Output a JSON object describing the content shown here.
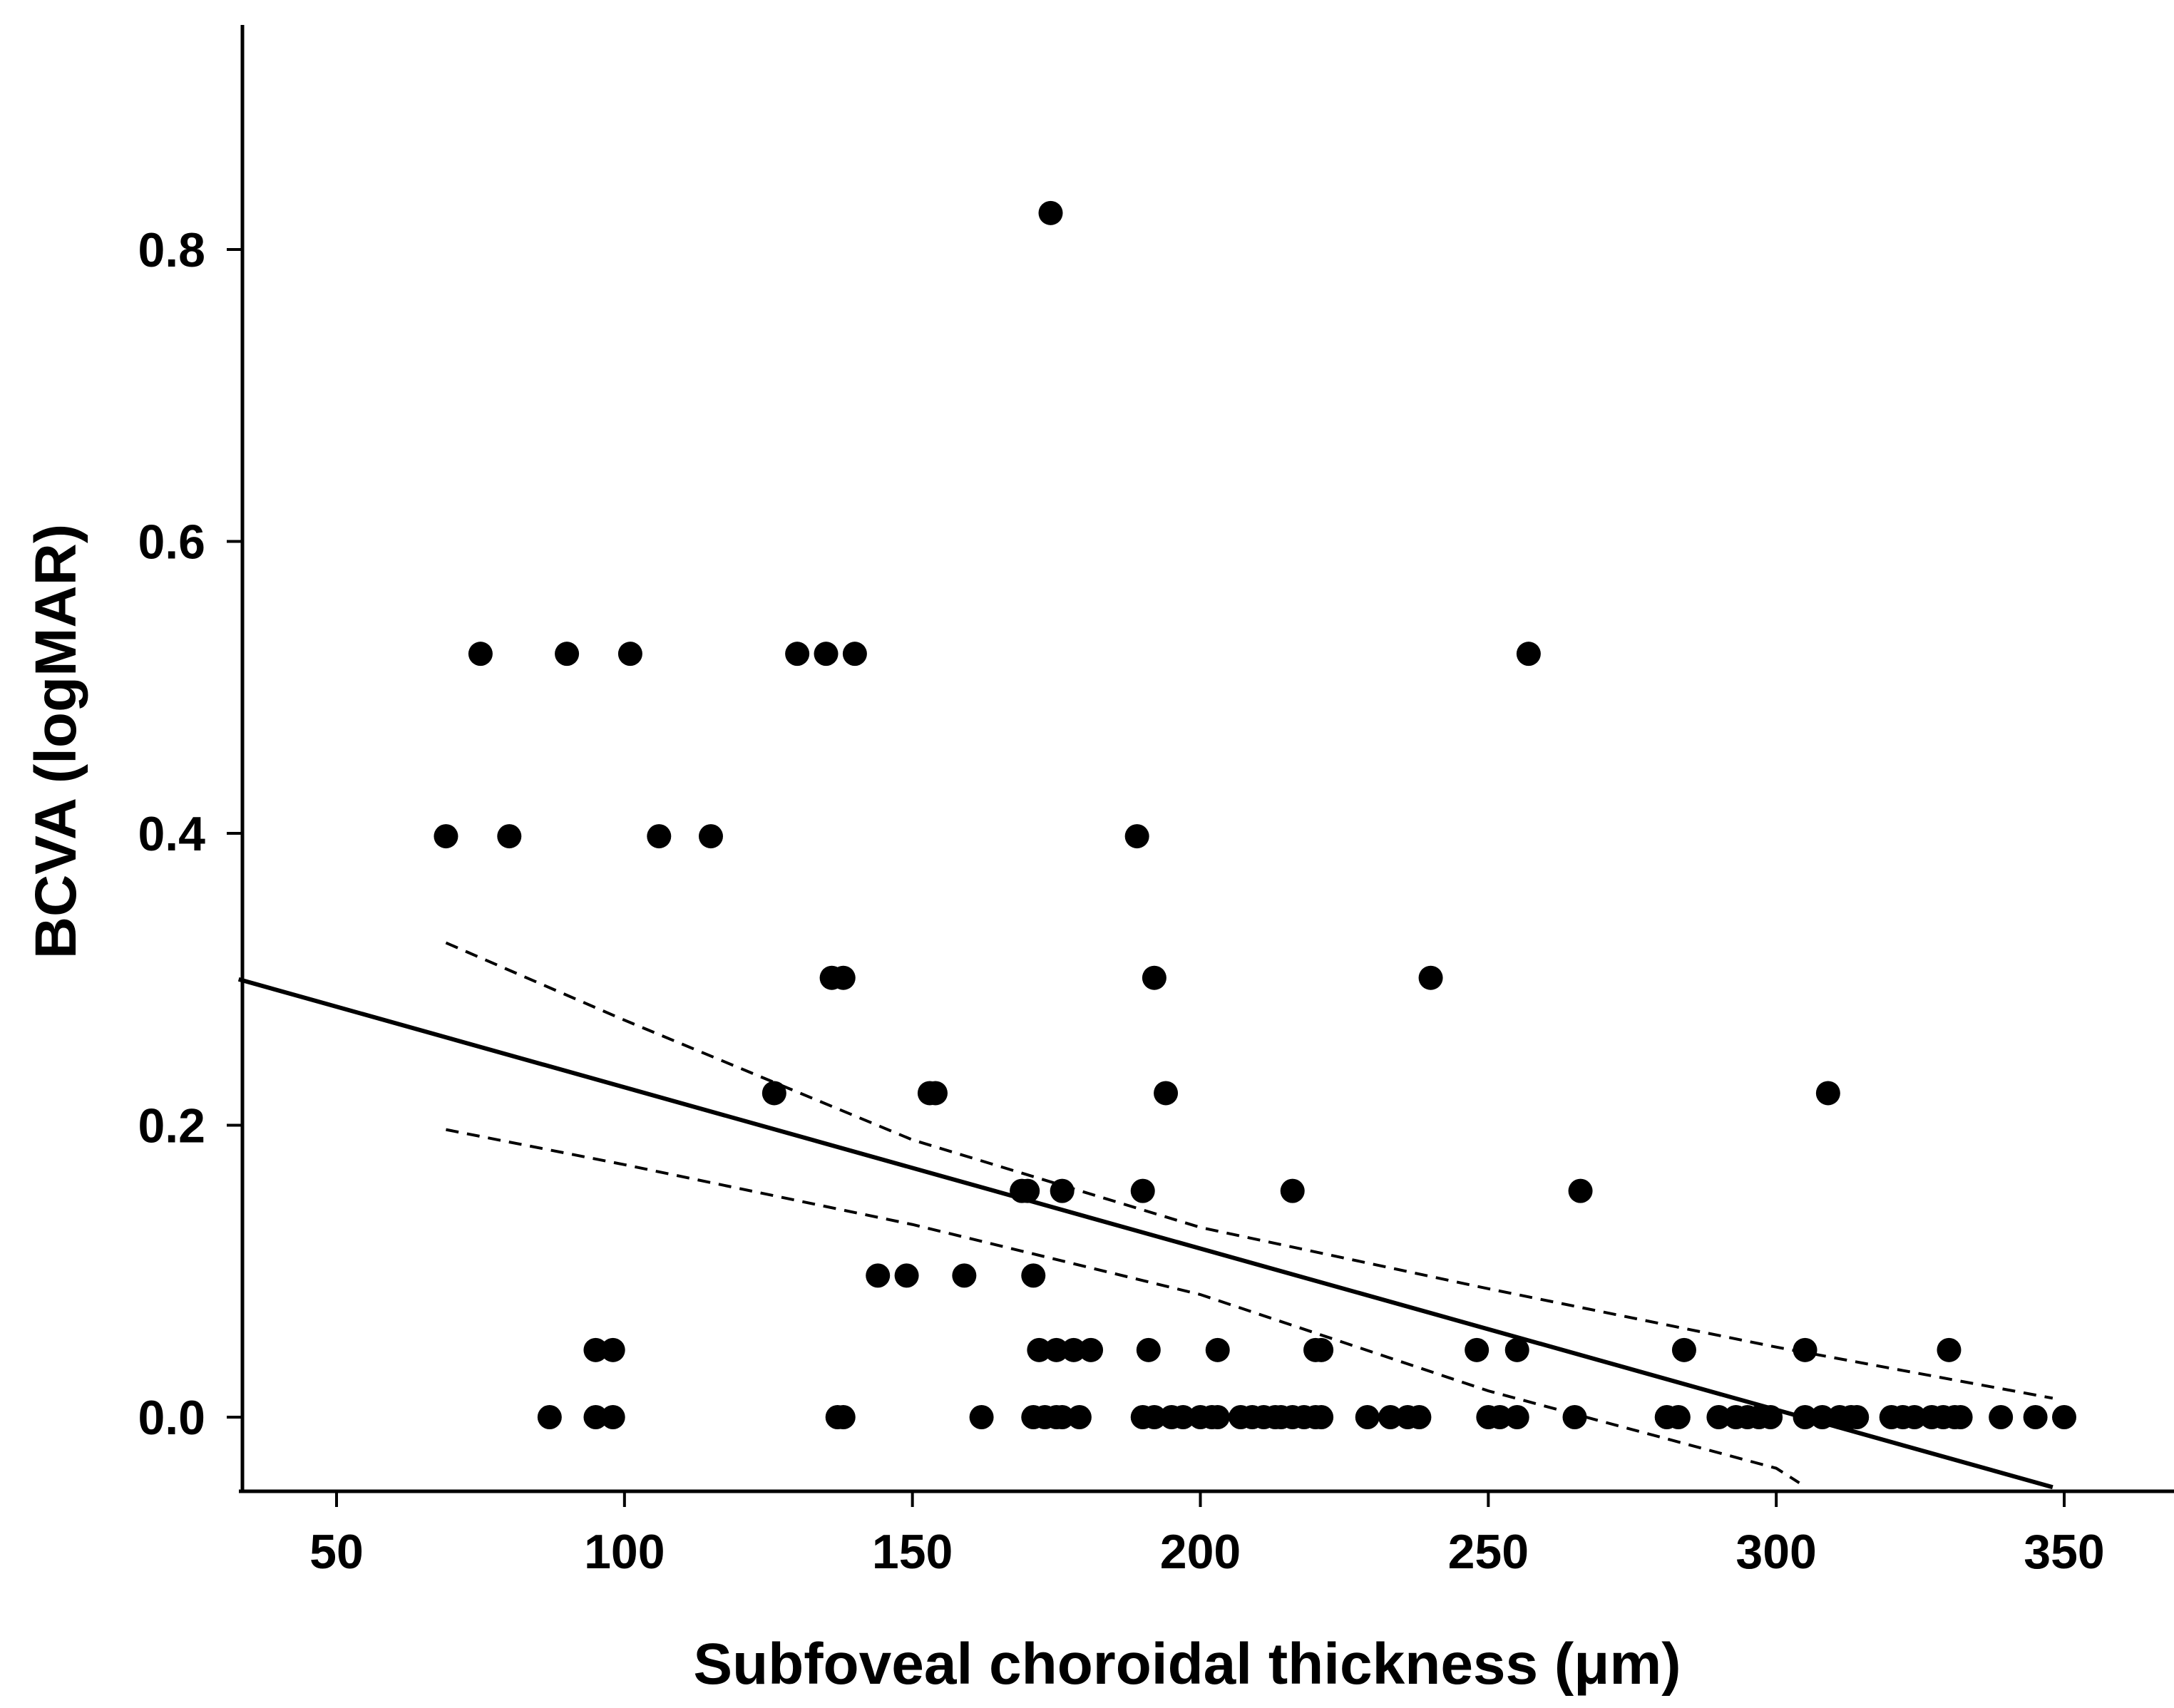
{
  "chart_data": {
    "type": "scatter",
    "title": "",
    "xlabel": "Subfoveal choroidal thickness (μm)",
    "ylabel": "BCVA (logMAR)",
    "xlim": [
      33,
      362
    ],
    "ylim": [
      -0.05,
      0.95
    ],
    "xticks": [
      50,
      100,
      150,
      200,
      250,
      300,
      350
    ],
    "xtick_labels": [
      "50",
      "100",
      "150",
      "200",
      "250",
      "300",
      "350"
    ],
    "yticks": [
      0.0,
      0.2,
      0.4,
      0.6,
      0.8
    ],
    "ytick_labels": [
      "0.0",
      "0.2",
      "0.4",
      "0.6",
      "0.8"
    ],
    "grid": false,
    "legend": "none",
    "regression_line": {
      "x": [
        33,
        348
      ],
      "y": [
        0.3,
        -0.048
      ],
      "style": "solid"
    },
    "confidence_band": {
      "upper": {
        "x": [
          69,
          100,
          150,
          200,
          250,
          300,
          348
        ],
        "y": [
          0.325,
          0.272,
          0.19,
          0.13,
          0.088,
          0.048,
          0.013
        ]
      },
      "lower": {
        "x": [
          69,
          100,
          150,
          200,
          250,
          300,
          304
        ],
        "y": [
          0.197,
          0.173,
          0.132,
          0.084,
          0.018,
          -0.035,
          -0.045
        ]
      },
      "style": "dashed"
    },
    "points": {
      "x": [
        174,
        75,
        90,
        101,
        130,
        135,
        140,
        257,
        69,
        80,
        106,
        115,
        189,
        136,
        138,
        192,
        240,
        126,
        153,
        154,
        194,
        309,
        169,
        170,
        176,
        190,
        216,
        266,
        144,
        149,
        159,
        171,
        95,
        98,
        172,
        175,
        178,
        181,
        191,
        203,
        220,
        221,
        248,
        255,
        284,
        305,
        330,
        87,
        95,
        98,
        137,
        138,
        162,
        171,
        173,
        175,
        176,
        179,
        190,
        192,
        195,
        197,
        200,
        202,
        203,
        207,
        209,
        211,
        213,
        214,
        216,
        218,
        220,
        221,
        229,
        233,
        236,
        238,
        250,
        252,
        255,
        265,
        281,
        283,
        290,
        293,
        295,
        297,
        299,
        305,
        308,
        311,
        313,
        314,
        320,
        322,
        324,
        327,
        329,
        331,
        332,
        339,
        345,
        350
      ],
      "y": [
        0.825,
        0.523,
        0.523,
        0.523,
        0.523,
        0.523,
        0.523,
        0.523,
        0.398,
        0.398,
        0.398,
        0.398,
        0.398,
        0.301,
        0.301,
        0.301,
        0.301,
        0.222,
        0.222,
        0.222,
        0.222,
        0.222,
        0.155,
        0.155,
        0.155,
        0.155,
        0.155,
        0.155,
        0.097,
        0.097,
        0.097,
        0.097,
        0.046,
        0.046,
        0.046,
        0.046,
        0.046,
        0.046,
        0.046,
        0.046,
        0.046,
        0.046,
        0.046,
        0.046,
        0.046,
        0.046,
        0.046,
        0.0,
        0.0,
        0.0,
        0.0,
        0.0,
        0.0,
        0.0,
        0.0,
        0.0,
        0.0,
        0.0,
        0.0,
        0.0,
        0.0,
        0.0,
        0.0,
        0.0,
        0.0,
        0.0,
        0.0,
        0.0,
        0.0,
        0.0,
        0.0,
        0.0,
        0.0,
        0.0,
        0.0,
        0.0,
        0.0,
        0.0,
        0.0,
        0.0,
        0.0,
        0.0,
        0.0,
        0.0,
        0.0,
        0.0,
        0.0,
        0.0,
        0.0,
        0.0,
        0.0,
        0.0,
        0.0,
        0.0,
        0.0,
        0.0,
        0.0,
        0.0,
        0.0,
        0.0,
        0.0,
        0.0,
        0.0,
        0.0
      ]
    }
  }
}
